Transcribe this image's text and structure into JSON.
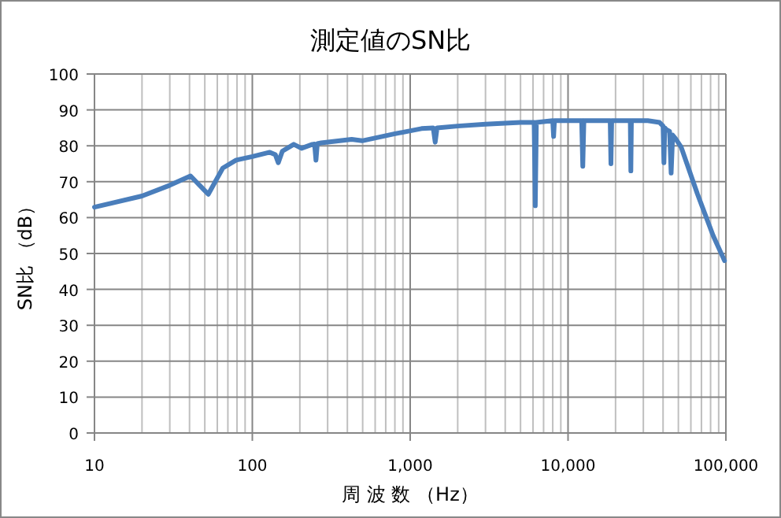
{
  "chart_data": {
    "type": "line",
    "title": "測定値のSN比",
    "xlabel": "周 波 数 （Hz）",
    "ylabel": "SN比 （dB）",
    "log": "x",
    "grid": true,
    "marker": "none",
    "line_style": "solid",
    "xlim": [
      10,
      100000
    ],
    "xticks": [
      10,
      100,
      {
        "value": 1000,
        "label": "1,000"
      },
      {
        "value": 10000,
        "label": "10,000"
      },
      {
        "value": 100000,
        "label": "100,000"
      }
    ],
    "ylim": [
      0,
      100
    ],
    "yticks": [
      0,
      10,
      20,
      30,
      40,
      50,
      60,
      70,
      80,
      90,
      100
    ],
    "series": [
      {
        "color": "#4a7ebb",
        "x": [
          10,
          20,
          30,
          40.6,
          52.6,
          65,
          79,
          100,
          129,
          140,
          146,
          155,
          183,
          205,
          240,
          248,
          253,
          258,
          273,
          426,
          496,
          790,
          1180,
          1400,
          1440,
          1480,
          2000,
          3000,
          5000,
          6100,
          6200,
          6300,
          8000,
          8100,
          8200,
          10000,
          12200,
          12400,
          12600,
          15000,
          18500,
          18700,
          18900,
          22000,
          24800,
          25000,
          25200,
          32000,
          38000,
          40000,
          40500,
          41000,
          42000,
          44000,
          45000,
          46000,
          48000,
          52000,
          66000,
          83000,
          98000
        ],
        "values": [
          62.9,
          66,
          69,
          71.6,
          66.5,
          73.8,
          76,
          77,
          78.2,
          77.5,
          75.3,
          78.5,
          80.4,
          79.3,
          80.4,
          80.5,
          76,
          80.6,
          80.8,
          81.8,
          81.4,
          83.3,
          84.8,
          85,
          81,
          85,
          85.5,
          86,
          86.5,
          86.5,
          63.3,
          86.5,
          87,
          82.6,
          87,
          87,
          87,
          74.3,
          87,
          87,
          87,
          75,
          87,
          87,
          87,
          73,
          87,
          87,
          86.5,
          85.5,
          75.3,
          85,
          84.5,
          84,
          72.4,
          83,
          82,
          79.7,
          66.6,
          55,
          48
        ]
      }
    ]
  }
}
